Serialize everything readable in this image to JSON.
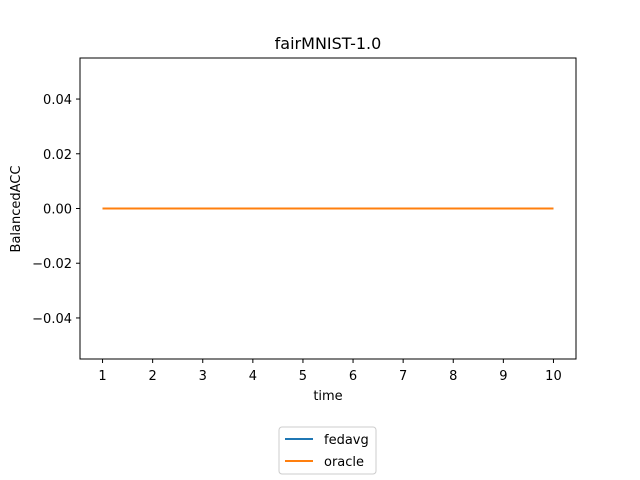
{
  "chart_data": {
    "type": "line",
    "title": "fairMNIST-1.0",
    "xlabel": "time",
    "ylabel": "BalancedACC",
    "x": [
      1,
      2,
      3,
      4,
      5,
      6,
      7,
      8,
      9,
      10
    ],
    "x_tick_labels": [
      "1",
      "2",
      "3",
      "4",
      "5",
      "6",
      "7",
      "8",
      "9",
      "10"
    ],
    "y_tick_labels": [
      "0.04",
      "0.02",
      "0.00",
      "−0.02",
      "−0.04"
    ],
    "y_tick_values": [
      0.04,
      0.02,
      0.0,
      -0.02,
      -0.04
    ],
    "xlim": [
      0.55,
      10.45
    ],
    "ylim": [
      -0.055,
      0.055
    ],
    "grid": false,
    "legend_position": "bottom-center (below axes)",
    "series": [
      {
        "name": "fedavg",
        "color": "#1f77b4",
        "values": [
          0,
          0,
          0,
          0,
          0,
          0,
          0,
          0,
          0,
          0
        ]
      },
      {
        "name": "oracle",
        "color": "#ff7f0e",
        "values": [
          0,
          0,
          0,
          0,
          0,
          0,
          0,
          0,
          0,
          0
        ]
      }
    ]
  }
}
